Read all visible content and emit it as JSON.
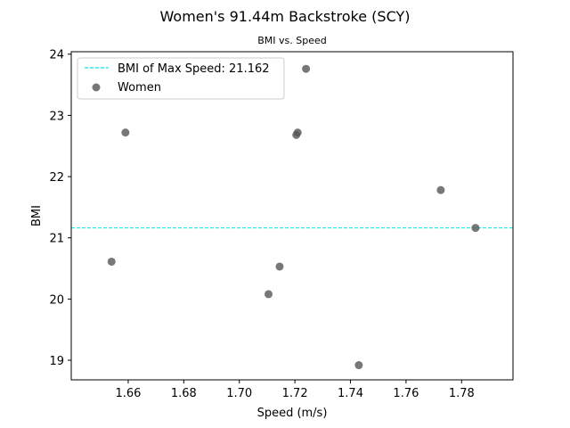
{
  "chart_data": {
    "type": "scatter",
    "title": "Women's 91.44m Backstroke (SCY)",
    "subtitle": "BMI vs. Speed",
    "xlabel": "Speed (m/s)",
    "ylabel": "BMI",
    "xlim": [
      1.6395,
      1.7985
    ],
    "ylim": [
      18.68,
      24.04
    ],
    "xticks": [
      "1.66",
      "1.68",
      "1.70",
      "1.72",
      "1.74",
      "1.76",
      "1.78"
    ],
    "yticks": [
      "19",
      "20",
      "21",
      "22",
      "23",
      "24"
    ],
    "grid": false,
    "legend_position": "upper-left",
    "series": [
      {
        "name": "Women",
        "color": "#555555",
        "points": [
          {
            "x": 1.659,
            "y": 22.72
          },
          {
            "x": 1.654,
            "y": 20.61
          },
          {
            "x": 1.7105,
            "y": 20.08
          },
          {
            "x": 1.7145,
            "y": 20.53
          },
          {
            "x": 1.7205,
            "y": 22.68
          },
          {
            "x": 1.721,
            "y": 22.72
          },
          {
            "x": 1.724,
            "y": 23.76
          },
          {
            "x": 1.743,
            "y": 18.92
          },
          {
            "x": 1.7725,
            "y": 21.78
          },
          {
            "x": 1.785,
            "y": 21.162
          }
        ]
      }
    ],
    "reference_lines": [
      {
        "name": "BMI of Max Speed: 21.162",
        "orientation": "horizontal",
        "y": 21.162,
        "color": "#00e5ee",
        "style": "dashed"
      }
    ]
  }
}
